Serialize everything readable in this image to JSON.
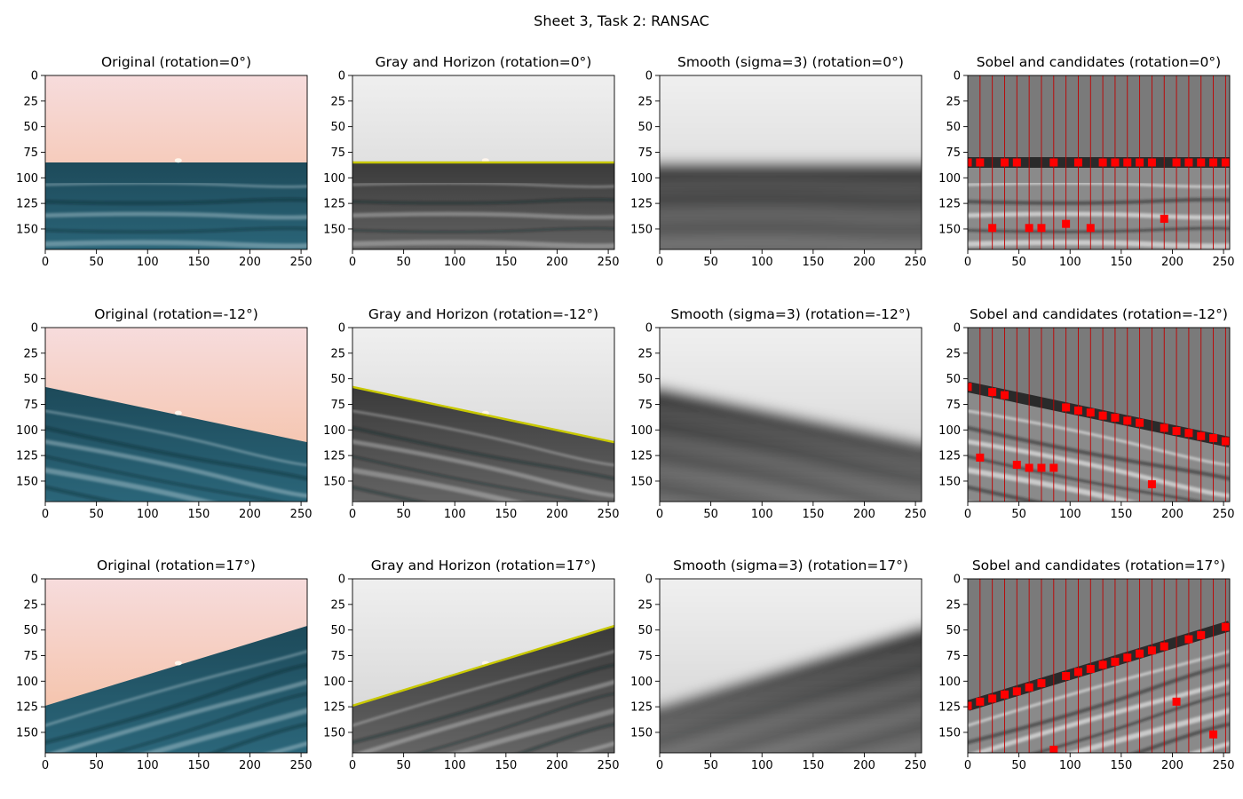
{
  "figure": {
    "suptitle": "Sheet 3, Task 2: RANSAC"
  },
  "colors": {
    "horizon_line": "#c8c800",
    "candidate_marker": "#ff0000",
    "column_line": "#c00000",
    "sky_top": "#f7dfe3",
    "sky_bottom": "#f4b996",
    "sea_top": "#1d4a5a",
    "sea_bottom": "#2d6a7e"
  },
  "axes_common": {
    "xticks": [
      0,
      50,
      100,
      150,
      200,
      250
    ],
    "yticks": [
      0,
      25,
      50,
      75,
      100,
      125,
      150
    ],
    "xlim": [
      0,
      256
    ],
    "ylim": [
      0,
      170
    ],
    "y_inverted": true
  },
  "rows": [
    {
      "rotation": "0°",
      "horizon": {
        "y_at_x0": 85,
        "y_at_x256": 85
      },
      "titles": {
        "original": "Original (rotation=0°)",
        "gray": "Gray and Horizon (rotation=0°)",
        "smooth": "Smooth (sigma=3) (rotation=0°)",
        "sobel": "Sobel and candidates (rotation=0°)"
      }
    },
    {
      "rotation": "-12°",
      "horizon": {
        "y_at_x0": 58,
        "y_at_x256": 112
      },
      "titles": {
        "original": "Original (rotation=-12°)",
        "gray": "Gray and Horizon (rotation=-12°)",
        "smooth": "Smooth (sigma=3) (rotation=-12°)",
        "sobel": "Sobel and candidates (rotation=-12°)"
      }
    },
    {
      "rotation": "17°",
      "horizon": {
        "y_at_x0": 124,
        "y_at_x256": 46
      },
      "titles": {
        "original": "Original (rotation=17°)",
        "gray": "Gray and Horizon (rotation=17°)",
        "smooth": "Smooth (sigma=3) (rotation=17°)",
        "sobel": "Sobel and candidates (rotation=17°)"
      }
    }
  ],
  "chart_data": [
    {
      "type": "scatter",
      "panel": "Sobel and candidates (rotation=0°)",
      "column_x": [
        12,
        24,
        36,
        48,
        60,
        72,
        84,
        96,
        108,
        120,
        132,
        144,
        156,
        168,
        180,
        192,
        204,
        216,
        228,
        240,
        252
      ],
      "points": [
        [
          0,
          85
        ],
        [
          12,
          85
        ],
        [
          36,
          85
        ],
        [
          48,
          85
        ],
        [
          84,
          85
        ],
        [
          108,
          85
        ],
        [
          132,
          85
        ],
        [
          144,
          85
        ],
        [
          156,
          85
        ],
        [
          168,
          85
        ],
        [
          180,
          85
        ],
        [
          204,
          85
        ],
        [
          216,
          85
        ],
        [
          228,
          85
        ],
        [
          240,
          85
        ],
        [
          252,
          85
        ],
        [
          24,
          149
        ],
        [
          60,
          149
        ],
        [
          72,
          149
        ],
        [
          96,
          145
        ],
        [
          120,
          149
        ],
        [
          192,
          140
        ]
      ],
      "xlim": [
        0,
        256
      ],
      "ylim": [
        170,
        0
      ]
    },
    {
      "type": "scatter",
      "panel": "Sobel and candidates (rotation=-12°)",
      "column_x": [
        12,
        24,
        36,
        48,
        60,
        72,
        84,
        96,
        108,
        120,
        132,
        144,
        156,
        168,
        180,
        192,
        204,
        216,
        228,
        240,
        252
      ],
      "points": [
        [
          0,
          58
        ],
        [
          24,
          63
        ],
        [
          36,
          66
        ],
        [
          96,
          78
        ],
        [
          108,
          81
        ],
        [
          120,
          83
        ],
        [
          132,
          86
        ],
        [
          144,
          88
        ],
        [
          156,
          91
        ],
        [
          168,
          93
        ],
        [
          192,
          98
        ],
        [
          204,
          101
        ],
        [
          216,
          103
        ],
        [
          228,
          106
        ],
        [
          240,
          108
        ],
        [
          252,
          111
        ],
        [
          12,
          127
        ],
        [
          48,
          134
        ],
        [
          60,
          137
        ],
        [
          72,
          137
        ],
        [
          84,
          137
        ],
        [
          180,
          153
        ]
      ],
      "xlim": [
        0,
        256
      ],
      "ylim": [
        170,
        0
      ]
    },
    {
      "type": "scatter",
      "panel": "Sobel and candidates (rotation=17°)",
      "column_x": [
        12,
        24,
        36,
        48,
        60,
        72,
        84,
        96,
        108,
        120,
        132,
        144,
        156,
        168,
        180,
        192,
        204,
        216,
        228,
        240,
        252
      ],
      "points": [
        [
          0,
          124
        ],
        [
          12,
          120
        ],
        [
          24,
          117
        ],
        [
          36,
          113
        ],
        [
          48,
          110
        ],
        [
          60,
          106
        ],
        [
          72,
          102
        ],
        [
          96,
          95
        ],
        [
          108,
          91
        ],
        [
          120,
          88
        ],
        [
          132,
          84
        ],
        [
          144,
          81
        ],
        [
          156,
          77
        ],
        [
          168,
          73
        ],
        [
          180,
          70
        ],
        [
          192,
          66
        ],
        [
          216,
          59
        ],
        [
          228,
          55
        ],
        [
          252,
          47
        ],
        [
          84,
          167
        ],
        [
          204,
          120
        ],
        [
          240,
          152
        ]
      ],
      "xlim": [
        0,
        256
      ],
      "ylim": [
        170,
        0
      ]
    }
  ]
}
